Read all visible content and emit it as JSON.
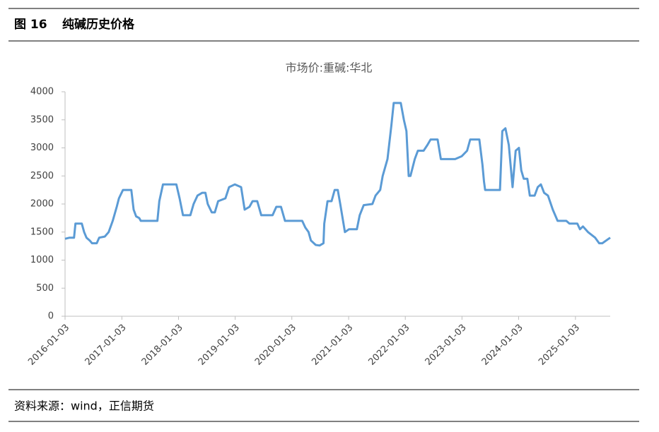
{
  "header": {
    "figure": "图 16",
    "title": "纯碱历史价格"
  },
  "chart_data": {
    "type": "line",
    "title": "市场价:重碱:华北",
    "x": [
      "2016-01-03",
      "2016-02-01",
      "2016-03-01",
      "2016-03-10",
      "2016-04-20",
      "2016-05-05",
      "2016-05-20",
      "2016-06-10",
      "2016-06-25",
      "2016-07-25",
      "2016-08-10",
      "2016-09-15",
      "2016-10-10",
      "2016-11-05",
      "2016-12-01",
      "2016-12-15",
      "2017-01-10",
      "2017-03-05",
      "2017-03-20",
      "2017-04-05",
      "2017-04-25",
      "2017-05-05",
      "2017-08-20",
      "2017-09-01",
      "2017-09-25",
      "2017-12-20",
      "2018-01-10",
      "2018-02-01",
      "2018-03-20",
      "2018-04-10",
      "2018-05-05",
      "2018-06-05",
      "2018-06-25",
      "2018-07-10",
      "2018-08-05",
      "2018-08-25",
      "2018-09-15",
      "2018-11-01",
      "2018-11-25",
      "2019-01-01",
      "2019-02-10",
      "2019-03-05",
      "2019-04-05",
      "2019-04-25",
      "2019-05-25",
      "2019-06-20",
      "2019-09-01",
      "2019-09-25",
      "2019-10-25",
      "2019-11-20",
      "2020-03-10",
      "2020-03-30",
      "2020-04-20",
      "2020-05-05",
      "2020-06-05",
      "2020-06-30",
      "2020-07-25",
      "2020-07-30",
      "2020-08-20",
      "2020-09-15",
      "2020-10-05",
      "2020-10-25",
      "2020-11-10",
      "2020-12-10",
      "2021-01-05",
      "2021-02-25",
      "2021-03-15",
      "2021-04-10",
      "2021-06-05",
      "2021-06-25",
      "2021-07-25",
      "2021-08-10",
      "2021-09-10",
      "2021-10-05",
      "2021-10-20",
      "2021-12-05",
      "2021-12-25",
      "2022-01-10",
      "2022-01-25",
      "2022-02-05",
      "2022-03-05",
      "2022-03-25",
      "2022-05-01",
      "2022-05-25",
      "2022-06-15",
      "2022-07-30",
      "2022-08-20",
      "2022-11-20",
      "2023-01-01",
      "2023-02-05",
      "2023-02-25",
      "2023-04-25",
      "2023-05-15",
      "2023-05-25",
      "2023-06-01",
      "2023-09-05",
      "2023-09-20",
      "2023-10-10",
      "2023-11-01",
      "2023-11-25",
      "2023-12-15",
      "2024-01-05",
      "2024-01-20",
      "2024-02-05",
      "2024-02-28",
      "2024-03-15",
      "2024-04-15",
      "2024-05-05",
      "2024-05-25",
      "2024-06-15",
      "2024-07-10",
      "2024-08-10",
      "2024-09-10",
      "2024-11-05",
      "2024-11-25",
      "2025-01-15",
      "2025-02-01",
      "2025-02-20",
      "2025-03-25",
      "2025-05-10",
      "2025-06-05",
      "2025-06-25",
      "2025-08-15"
    ],
    "series": [
      {
        "name": "市场价:重碱:华北",
        "color": "#5b9bd5",
        "values": [
          1380,
          1400,
          1400,
          1650,
          1650,
          1500,
          1400,
          1350,
          1300,
          1300,
          1400,
          1420,
          1500,
          1700,
          1950,
          2100,
          2250,
          2250,
          1900,
          1780,
          1750,
          1700,
          1700,
          2050,
          2350,
          2350,
          2100,
          1800,
          1800,
          2000,
          2150,
          2200,
          2200,
          2000,
          1850,
          1850,
          2050,
          2100,
          2300,
          2350,
          2300,
          1900,
          1950,
          2050,
          2050,
          1800,
          1800,
          1950,
          1950,
          1700,
          1700,
          1580,
          1500,
          1350,
          1270,
          1260,
          1300,
          1650,
          2050,
          2050,
          2250,
          2250,
          2000,
          1500,
          1550,
          1550,
          1800,
          1980,
          2000,
          2150,
          2250,
          2500,
          2800,
          3400,
          3800,
          3800,
          3500,
          3300,
          2500,
          2500,
          2800,
          2950,
          2950,
          3050,
          3150,
          3150,
          2800,
          2800,
          2850,
          2950,
          3150,
          3150,
          2700,
          2400,
          2250,
          2250,
          3300,
          3350,
          3050,
          2300,
          2950,
          3000,
          2600,
          2450,
          2450,
          2150,
          2150,
          2300,
          2350,
          2200,
          2150,
          1900,
          1700,
          1700,
          1650,
          1650,
          1550,
          1600,
          1500,
          1400,
          1300,
          1300,
          1400
        ]
      }
    ],
    "xlim": [
      "2016-01-03",
      "2025-08-15"
    ],
    "xticks": [
      "2016-01-03",
      "2017-01-03",
      "2018-01-03",
      "2019-01-03",
      "2020-01-03",
      "2021-01-03",
      "2022-01-03",
      "2023-01-03",
      "2024-01-03",
      "2025-01-03"
    ],
    "ylim": [
      0,
      4000
    ],
    "yticks": [
      0,
      500,
      1000,
      1500,
      2000,
      2500,
      3000,
      3500,
      4000
    ]
  },
  "source": "资料来源：wind，正信期货"
}
